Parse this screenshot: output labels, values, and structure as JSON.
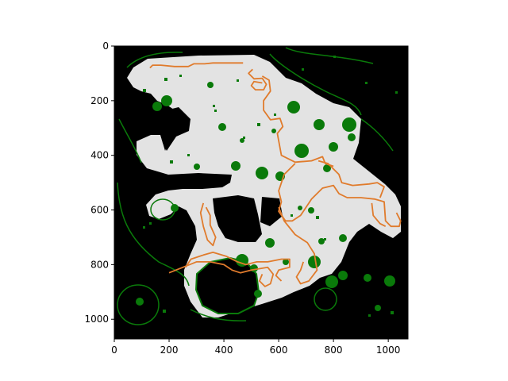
{
  "chart_data": {
    "type": "heatmap",
    "title": "",
    "xlabel": "",
    "ylabel": "",
    "xlim": [
      0,
      1072
    ],
    "ylim": [
      1072,
      0
    ],
    "x_ticks": [
      0,
      200,
      400,
      600,
      800,
      1000
    ],
    "y_ticks": [
      0,
      200,
      400,
      600,
      800,
      1000
    ],
    "grid": false,
    "legend": "none",
    "colors": {
      "background": "#000000",
      "free_space": "#e3e3e3",
      "obstacles": "#0a7a0a",
      "path": "#e07b2c"
    },
    "series": [
      {
        "type": "line",
        "values": [
          [
            130,
            80
          ],
          [
            140,
            70
          ],
          [
            170,
            70
          ],
          [
            220,
            75
          ],
          [
            270,
            75
          ],
          [
            290,
            65
          ],
          [
            330,
            65
          ],
          [
            360,
            62
          ],
          [
            400,
            62
          ],
          [
            440,
            62
          ],
          [
            470,
            62
          ]
        ]
      },
      {
        "type": "line",
        "values": [
          [
            505,
            85
          ],
          [
            490,
            100
          ],
          [
            510,
            120
          ],
          [
            540,
            118
          ],
          [
            555,
            140
          ],
          [
            545,
            160
          ],
          [
            515,
            160
          ],
          [
            500,
            145
          ],
          [
            510,
            130
          ],
          [
            540,
            135
          ]
        ]
      },
      {
        "type": "line",
        "values": [
          [
            540,
            110
          ],
          [
            565,
            125
          ],
          [
            570,
            165
          ],
          [
            545,
            200
          ],
          [
            545,
            235
          ],
          [
            570,
            270
          ],
          [
            605,
            265
          ],
          [
            615,
            295
          ],
          [
            595,
            320
          ],
          [
            610,
            400
          ],
          [
            660,
            425
          ],
          [
            720,
            420
          ],
          [
            760,
            405
          ],
          [
            770,
            430
          ],
          [
            800,
            440
          ]
        ]
      },
      {
        "type": "line",
        "values": [
          [
            660,
            430
          ],
          [
            620,
            470
          ],
          [
            600,
            530
          ],
          [
            610,
            570
          ],
          [
            600,
            605
          ],
          [
            625,
            640
          ],
          [
            650,
            640
          ],
          [
            680,
            620
          ],
          [
            720,
            560
          ],
          [
            760,
            520
          ],
          [
            800,
            510
          ],
          [
            820,
            540
          ],
          [
            850,
            555
          ],
          [
            900,
            555
          ],
          [
            950,
            560
          ],
          [
            985,
            570
          ],
          [
            990,
            640
          ],
          [
            1010,
            660
          ],
          [
            1040,
            660
          ],
          [
            1045,
            640
          ],
          [
            1030,
            610
          ]
        ]
      },
      {
        "type": "line",
        "values": [
          [
            745,
            420
          ],
          [
            780,
            430
          ],
          [
            820,
            470
          ],
          [
            830,
            500
          ],
          [
            870,
            510
          ],
          [
            930,
            505
          ],
          [
            960,
            500
          ],
          [
            985,
            515
          ],
          [
            970,
            555
          ]
        ]
      },
      {
        "type": "line",
        "values": [
          [
            600,
            590
          ],
          [
            620,
            640
          ],
          [
            660,
            690
          ],
          [
            705,
            720
          ],
          [
            730,
            760
          ],
          [
            740,
            820
          ],
          [
            710,
            860
          ],
          [
            680,
            870
          ],
          [
            665,
            845
          ],
          [
            680,
            820
          ],
          [
            690,
            790
          ]
        ]
      },
      {
        "type": "line",
        "values": [
          [
            325,
            575
          ],
          [
            315,
            610
          ],
          [
            325,
            660
          ],
          [
            340,
            710
          ],
          [
            360,
            730
          ],
          [
            370,
            700
          ],
          [
            350,
            655
          ],
          [
            350,
            620
          ],
          [
            335,
            590
          ]
        ]
      },
      {
        "type": "line",
        "values": [
          [
            260,
            810
          ],
          [
            280,
            780
          ],
          [
            325,
            765
          ],
          [
            360,
            755
          ],
          [
            410,
            770
          ],
          [
            450,
            790
          ],
          [
            480,
            800
          ],
          [
            520,
            790
          ],
          [
            560,
            790
          ],
          [
            610,
            780
          ],
          [
            640,
            780
          ],
          [
            640,
            810
          ],
          [
            600,
            820
          ],
          [
            590,
            840
          ],
          [
            610,
            860
          ]
        ]
      },
      {
        "type": "line",
        "values": [
          [
            200,
            830
          ],
          [
            250,
            810
          ],
          [
            300,
            790
          ],
          [
            350,
            790
          ],
          [
            400,
            800
          ],
          [
            430,
            820
          ],
          [
            460,
            830
          ],
          [
            500,
            820
          ],
          [
            560,
            810
          ],
          [
            580,
            835
          ],
          [
            570,
            870
          ],
          [
            550,
            880
          ],
          [
            530,
            860
          ],
          [
            540,
            835
          ]
        ]
      },
      {
        "type": "line",
        "values": [
          [
            940,
            575
          ],
          [
            945,
            620
          ],
          [
            970,
            650
          ],
          [
            990,
            660
          ]
        ]
      }
    ]
  }
}
